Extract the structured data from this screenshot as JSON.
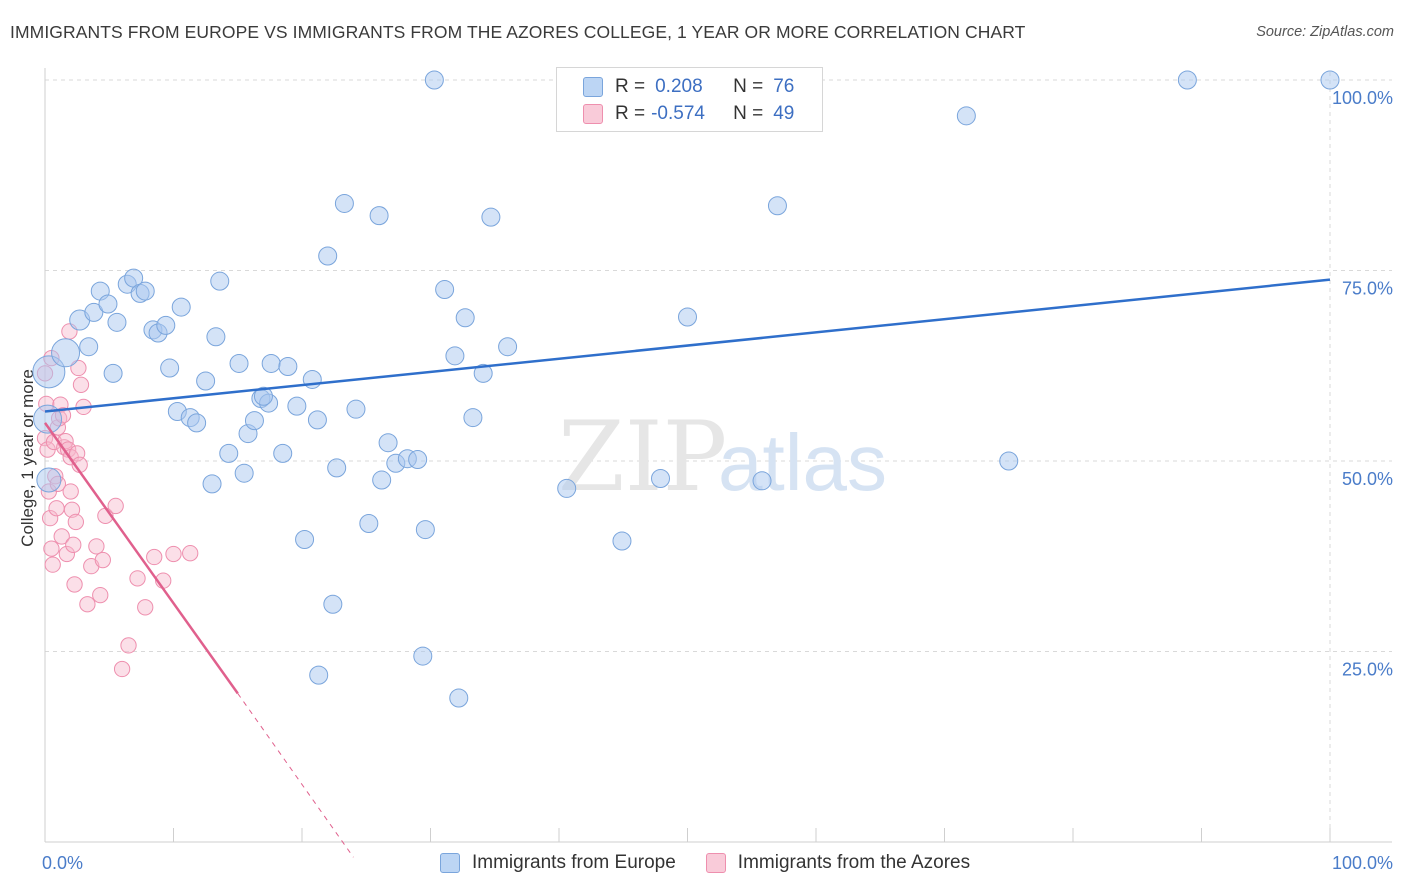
{
  "title": "IMMIGRANTS FROM EUROPE VS IMMIGRANTS FROM THE AZORES COLLEGE, 1 YEAR OR MORE CORRELATION CHART",
  "source": "Source: ZipAtlas.com",
  "watermark": {
    "zip": "ZIP",
    "atlas": "atlas"
  },
  "legend": {
    "europe": {
      "r_label": "R =",
      "r_value": "0.208",
      "n_label": "N =",
      "n_value": "76"
    },
    "azores": {
      "r_label": "R =",
      "r_value": "-0.574",
      "n_label": "N =",
      "n_value": "49"
    }
  },
  "colors": {
    "europe_fill": "#a9c8ef",
    "europe_stroke": "#7aa5dc",
    "europe_line": "#2f6fcb",
    "azores_fill": "#f6b8cb",
    "azores_stroke": "#ee8fae",
    "azores_line": "#e0608d",
    "grid": "#d9d9d9",
    "tick_text": "#4a7cc9"
  },
  "chart_data": {
    "type": "scatter",
    "title": "IMMIGRANTS FROM EUROPE VS IMMIGRANTS FROM THE AZORES COLLEGE, 1 YEAR OR MORE CORRELATION CHART",
    "xlabel": "",
    "ylabel": "College, 1 year or more",
    "xlim": [
      0,
      100
    ],
    "ylim": [
      0,
      100
    ],
    "x_tick_labels": [
      "0.0%",
      "100.0%"
    ],
    "y_ticks": [
      25,
      50,
      75,
      100
    ],
    "y_tick_labels": [
      "25.0%",
      "50.0%",
      "75.0%",
      "100.0%"
    ],
    "series": [
      {
        "name": "Immigrants from Europe",
        "r": 0.208,
        "n": 76,
        "trend": {
          "x0": 0,
          "y0": 56.5,
          "x1": 100,
          "y1": 73.8
        },
        "points": [
          [
            0.3,
            61.7,
            16
          ],
          [
            0.2,
            55.5,
            14
          ],
          [
            0.3,
            47.5,
            12
          ],
          [
            1.6,
            64.2,
            14
          ],
          [
            3.4,
            65.0,
            9
          ],
          [
            2.7,
            68.5,
            10
          ],
          [
            3.8,
            69.5,
            9
          ],
          [
            4.3,
            72.3,
            9
          ],
          [
            4.9,
            70.6,
            9
          ],
          [
            5.6,
            68.2,
            9
          ],
          [
            5.3,
            61.5,
            9
          ],
          [
            6.4,
            73.2,
            9
          ],
          [
            6.9,
            74.0,
            9
          ],
          [
            7.4,
            72.0,
            9
          ],
          [
            7.8,
            72.3,
            9
          ],
          [
            8.4,
            67.2,
            9
          ],
          [
            8.8,
            66.8,
            9
          ],
          [
            9.4,
            67.8,
            9
          ],
          [
            9.7,
            62.2,
            9
          ],
          [
            10.6,
            70.2,
            9
          ],
          [
            10.3,
            56.5,
            9
          ],
          [
            11.3,
            55.7,
            9
          ],
          [
            11.8,
            55.0,
            9
          ],
          [
            12.5,
            60.5,
            9
          ],
          [
            13.0,
            47.0,
            9
          ],
          [
            13.3,
            66.3,
            9
          ],
          [
            13.6,
            73.6,
            9
          ],
          [
            14.3,
            51.0,
            9
          ],
          [
            15.1,
            62.8,
            9
          ],
          [
            15.5,
            48.4,
            9
          ],
          [
            15.8,
            53.6,
            9
          ],
          [
            16.3,
            55.3,
            9
          ],
          [
            16.8,
            58.2,
            9
          ],
          [
            17.4,
            57.6,
            9
          ],
          [
            17.6,
            62.8,
            9
          ],
          [
            18.5,
            51.0,
            9
          ],
          [
            18.9,
            62.4,
            9
          ],
          [
            19.6,
            57.2,
            9
          ],
          [
            20.2,
            39.7,
            9
          ],
          [
            20.8,
            60.7,
            9
          ],
          [
            21.2,
            55.4,
            9
          ],
          [
            22.0,
            76.9,
            9
          ],
          [
            22.4,
            31.2,
            9
          ],
          [
            22.7,
            49.1,
            9
          ],
          [
            23.3,
            83.8,
            9
          ],
          [
            24.2,
            56.8,
            9
          ],
          [
            25.2,
            41.8,
            9
          ],
          [
            26.0,
            82.2,
            9
          ],
          [
            26.2,
            47.5,
            9
          ],
          [
            26.7,
            52.4,
            9
          ],
          [
            27.3,
            49.7,
            9
          ],
          [
            28.2,
            50.3,
            9
          ],
          [
            29.0,
            50.2,
            9
          ],
          [
            29.4,
            24.4,
            9
          ],
          [
            29.6,
            41.0,
            9
          ],
          [
            30.3,
            100.0,
            9
          ],
          [
            31.1,
            72.5,
            9
          ],
          [
            31.9,
            63.8,
            9
          ],
          [
            32.2,
            18.9,
            9
          ],
          [
            32.7,
            68.8,
            9
          ],
          [
            33.3,
            55.7,
            9
          ],
          [
            34.1,
            61.5,
            9
          ],
          [
            34.7,
            82.0,
            9
          ],
          [
            36.0,
            65.0,
            9
          ],
          [
            40.6,
            46.4,
            9
          ],
          [
            44.9,
            39.5,
            9
          ],
          [
            47.9,
            47.7,
            9
          ],
          [
            50.0,
            68.9,
            9
          ],
          [
            55.8,
            47.4,
            9
          ],
          [
            57.0,
            83.5,
            9
          ],
          [
            71.7,
            95.3,
            9
          ],
          [
            75.0,
            50.0,
            9
          ],
          [
            88.9,
            100.0,
            9
          ],
          [
            21.3,
            21.9,
            9
          ],
          [
            100.0,
            100.0,
            9
          ],
          [
            17.0,
            58.5,
            9
          ]
        ]
      },
      {
        "name": "Immigrants from the Azores",
        "r": -0.574,
        "n": 49,
        "trend": {
          "x0": 0,
          "y0": 55.0,
          "x1": 15.0,
          "y1": 19.5
        },
        "trend_dashed": {
          "x0": 15.0,
          "y0": 19.5,
          "x1": 24.0,
          "y1": -2.0
        },
        "points": [
          [
            0.0,
            61.5,
            9
          ],
          [
            0.1,
            57.5,
            9
          ],
          [
            0.0,
            53.0,
            9
          ],
          [
            0.2,
            51.5,
            9
          ],
          [
            0.3,
            46.0,
            9
          ],
          [
            0.4,
            42.5,
            9
          ],
          [
            0.5,
            38.5,
            9
          ],
          [
            0.6,
            36.4,
            9
          ],
          [
            0.7,
            52.5,
            9
          ],
          [
            0.8,
            48.0,
            9
          ],
          [
            0.9,
            43.8,
            9
          ],
          [
            1.0,
            54.4,
            9
          ],
          [
            1.1,
            55.6,
            9
          ],
          [
            1.2,
            57.4,
            9
          ],
          [
            1.3,
            40.1,
            9
          ],
          [
            1.4,
            56.0,
            9
          ],
          [
            1.5,
            51.8,
            9
          ],
          [
            1.6,
            52.6,
            9
          ],
          [
            1.7,
            37.8,
            9
          ],
          [
            1.8,
            51.5,
            9
          ],
          [
            1.9,
            67.0,
            9
          ],
          [
            2.0,
            50.5,
            9
          ],
          [
            2.1,
            43.6,
            9
          ],
          [
            2.2,
            39.0,
            9
          ],
          [
            2.3,
            33.8,
            9
          ],
          [
            2.4,
            42.0,
            9
          ],
          [
            2.5,
            51.0,
            9
          ],
          [
            2.6,
            62.2,
            9
          ],
          [
            2.7,
            49.5,
            9
          ],
          [
            2.8,
            60.0,
            9
          ],
          [
            3.0,
            57.1,
            9
          ],
          [
            3.3,
            31.2,
            9
          ],
          [
            3.6,
            36.2,
            9
          ],
          [
            4.0,
            38.8,
            9
          ],
          [
            4.3,
            32.4,
            9
          ],
          [
            4.5,
            37.0,
            9
          ],
          [
            4.7,
            42.8,
            9
          ],
          [
            5.5,
            44.1,
            9
          ],
          [
            6.0,
            22.7,
            9
          ],
          [
            6.5,
            25.8,
            9
          ],
          [
            7.2,
            34.6,
            9
          ],
          [
            7.8,
            30.8,
            9
          ],
          [
            8.5,
            37.4,
            9
          ],
          [
            9.2,
            34.3,
            9
          ],
          [
            10.0,
            37.8,
            9
          ],
          [
            11.3,
            37.9,
            9
          ],
          [
            1.0,
            47.0,
            9
          ],
          [
            0.5,
            63.5,
            9
          ],
          [
            2.0,
            46.0,
            9
          ]
        ]
      }
    ]
  },
  "bottom_legend": [
    "Immigrants from Europe",
    "Immigrants from the Azores"
  ]
}
